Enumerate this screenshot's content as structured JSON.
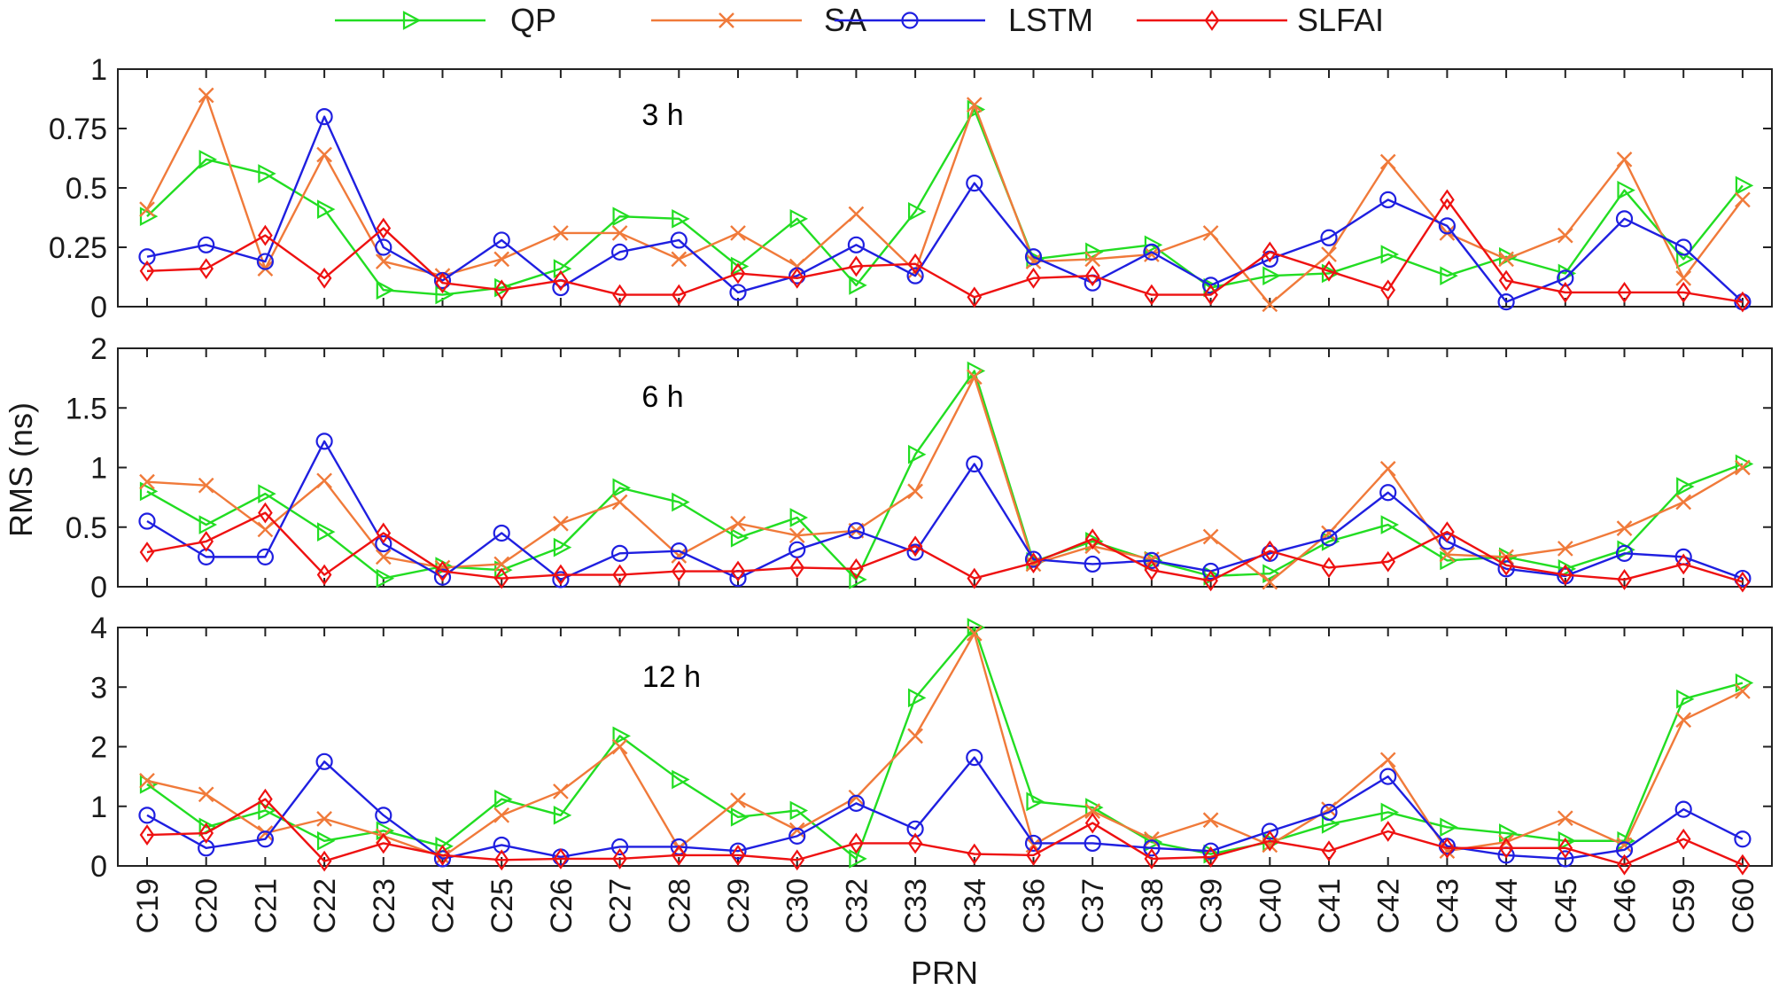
{
  "chart_data": {
    "type": "line",
    "categories": [
      "C19",
      "C20",
      "C21",
      "C22",
      "C23",
      "C24",
      "C25",
      "C26",
      "C27",
      "C28",
      "C29",
      "C30",
      "C32",
      "C33",
      "C34",
      "C36",
      "C37",
      "C38",
      "C39",
      "C40",
      "C41",
      "C42",
      "C43",
      "C44",
      "C45",
      "C46",
      "C59",
      "C60"
    ],
    "xlabel": "PRN",
    "ylabel": "RMS (ns)",
    "legend": [
      {
        "name": "QP",
        "color": "#22dd22",
        "marker": "triangle-right"
      },
      {
        "name": "SA",
        "color": "#f07a3a",
        "marker": "x"
      },
      {
        "name": "LSTM",
        "color": "#1f1fe0",
        "marker": "circle"
      },
      {
        "name": "SLFAI",
        "color": "#ee1111",
        "marker": "diamond"
      }
    ],
    "legend_position": "top-center",
    "panels": [
      {
        "label": "3 h",
        "ylim": [
          0,
          1
        ],
        "yticks": [
          0,
          0.25,
          0.5,
          0.75,
          1
        ],
        "ytick_labels": [
          "0",
          "0.25",
          "0.5",
          "0.75",
          "1"
        ],
        "series": [
          {
            "name": "QP",
            "values": [
              0.38,
              0.62,
              0.56,
              0.41,
              0.07,
              0.05,
              0.08,
              0.16,
              0.38,
              0.37,
              0.17,
              0.37,
              0.09,
              0.4,
              0.83,
              0.2,
              0.23,
              0.26,
              0.08,
              0.13,
              0.14,
              0.22,
              0.13,
              0.21,
              0.14,
              0.49,
              0.2,
              0.51
            ]
          },
          {
            "name": "SA",
            "values": [
              0.41,
              0.89,
              0.16,
              0.64,
              0.19,
              0.13,
              0.2,
              0.31,
              0.31,
              0.2,
              0.31,
              0.17,
              0.39,
              0.15,
              0.85,
              0.19,
              0.2,
              0.22,
              0.31,
              0.01,
              0.22,
              0.61,
              0.31,
              0.2,
              0.3,
              0.62,
              0.12,
              0.45
            ]
          },
          {
            "name": "LSTM",
            "values": [
              0.21,
              0.26,
              0.19,
              0.8,
              0.25,
              0.11,
              0.28,
              0.08,
              0.23,
              0.28,
              0.06,
              0.13,
              0.26,
              0.13,
              0.52,
              0.21,
              0.1,
              0.23,
              0.09,
              0.2,
              0.29,
              0.45,
              0.34,
              0.02,
              0.12,
              0.37,
              0.25,
              0.02
            ]
          },
          {
            "name": "SLFAI",
            "values": [
              0.15,
              0.16,
              0.3,
              0.12,
              0.33,
              0.1,
              0.07,
              0.11,
              0.05,
              0.05,
              0.14,
              0.12,
              0.17,
              0.18,
              0.04,
              0.12,
              0.13,
              0.05,
              0.05,
              0.23,
              0.15,
              0.07,
              0.45,
              0.11,
              0.06,
              0.06,
              0.06,
              0.02
            ]
          }
        ]
      },
      {
        "label": "6 h",
        "ylim": [
          0,
          2
        ],
        "yticks": [
          0,
          0.5,
          1,
          1.5,
          2
        ],
        "ytick_labels": [
          "0",
          "0.5",
          "1",
          "1.5",
          "2"
        ],
        "series": [
          {
            "name": "QP",
            "values": [
              0.8,
              0.52,
              0.78,
              0.46,
              0.07,
              0.17,
              0.14,
              0.33,
              0.83,
              0.71,
              0.41,
              0.58,
              0.06,
              1.11,
              1.81,
              0.21,
              0.38,
              0.22,
              0.09,
              0.11,
              0.38,
              0.52,
              0.22,
              0.25,
              0.15,
              0.31,
              0.84,
              1.03
            ]
          },
          {
            "name": "SA",
            "values": [
              0.88,
              0.85,
              0.48,
              0.89,
              0.25,
              0.16,
              0.19,
              0.53,
              0.71,
              0.26,
              0.53,
              0.43,
              0.47,
              0.8,
              1.76,
              0.19,
              0.34,
              0.23,
              0.42,
              0.04,
              0.45,
              0.99,
              0.27,
              0.25,
              0.32,
              0.49,
              0.71,
              1.0
            ]
          },
          {
            "name": "LSTM",
            "values": [
              0.55,
              0.25,
              0.25,
              1.22,
              0.36,
              0.08,
              0.45,
              0.06,
              0.28,
              0.3,
              0.07,
              0.31,
              0.47,
              0.29,
              1.03,
              0.23,
              0.19,
              0.22,
              0.13,
              0.28,
              0.41,
              0.79,
              0.38,
              0.15,
              0.09,
              0.28,
              0.25,
              0.07
            ]
          },
          {
            "name": "SLFAI",
            "values": [
              0.29,
              0.38,
              0.62,
              0.1,
              0.45,
              0.13,
              0.07,
              0.1,
              0.1,
              0.13,
              0.13,
              0.16,
              0.15,
              0.34,
              0.07,
              0.2,
              0.4,
              0.14,
              0.05,
              0.3,
              0.16,
              0.21,
              0.46,
              0.18,
              0.1,
              0.06,
              0.19,
              0.04
            ]
          }
        ]
      },
      {
        "label": "12 h",
        "ylim": [
          0,
          4
        ],
        "yticks": [
          0,
          1,
          2,
          3,
          4
        ],
        "ytick_labels": [
          "0",
          "1",
          "2",
          "3",
          "4"
        ],
        "series": [
          {
            "name": "QP",
            "values": [
              1.37,
              0.65,
              0.93,
              0.42,
              0.59,
              0.33,
              1.12,
              0.85,
              2.18,
              1.45,
              0.82,
              0.93,
              0.12,
              2.82,
              4.0,
              1.08,
              0.98,
              0.4,
              0.2,
              0.4,
              0.7,
              0.9,
              0.65,
              0.55,
              0.42,
              0.42,
              2.8,
              3.07
            ]
          },
          {
            "name": "SA",
            "values": [
              1.43,
              1.2,
              0.55,
              0.79,
              0.5,
              0.15,
              0.85,
              1.25,
              2.0,
              0.3,
              1.1,
              0.6,
              1.15,
              2.18,
              3.9,
              0.35,
              0.92,
              0.45,
              0.77,
              0.35,
              0.95,
              1.78,
              0.25,
              0.4,
              0.8,
              0.35,
              2.45,
              2.93
            ]
          },
          {
            "name": "LSTM",
            "values": [
              0.85,
              0.3,
              0.45,
              1.75,
              0.85,
              0.12,
              0.35,
              0.15,
              0.32,
              0.32,
              0.25,
              0.5,
              1.05,
              0.62,
              1.82,
              0.38,
              0.38,
              0.3,
              0.25,
              0.58,
              0.9,
              1.5,
              0.33,
              0.18,
              0.12,
              0.27,
              0.95,
              0.45
            ]
          },
          {
            "name": "SLFAI",
            "values": [
              0.52,
              0.55,
              1.12,
              0.08,
              0.38,
              0.18,
              0.1,
              0.12,
              0.12,
              0.18,
              0.18,
              0.1,
              0.38,
              0.38,
              0.2,
              0.18,
              0.72,
              0.12,
              0.15,
              0.42,
              0.25,
              0.58,
              0.3,
              0.3,
              0.3,
              0.02,
              0.45,
              0.02
            ]
          }
        ]
      }
    ]
  }
}
